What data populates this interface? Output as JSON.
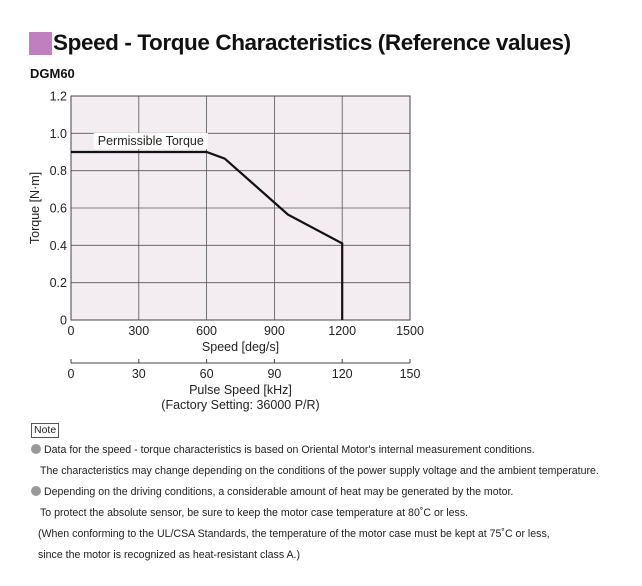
{
  "header": {
    "title": "Speed - Torque Characteristics (Reference values)",
    "model": "DGM60"
  },
  "chart_data": {
    "type": "line",
    "title": "",
    "xlabel": "Speed [deg/s]",
    "ylabel": "Torque [N·m]",
    "xlim": [
      0,
      1500
    ],
    "ylim": [
      0,
      1.2
    ],
    "x_ticks": [
      "0",
      "300",
      "600",
      "900",
      "1200",
      "1500"
    ],
    "y_ticks": [
      "0",
      "0.2",
      "0.4",
      "0.6",
      "0.8",
      "1.0",
      "1.2"
    ],
    "grid": true,
    "background": "#f3edf2",
    "series": [
      {
        "name": "Permissible Torque",
        "color": "#111111",
        "x": [
          0,
          600,
          680,
          960,
          1200,
          1200
        ],
        "y": [
          0.9,
          0.9,
          0.865,
          0.565,
          0.41,
          0
        ]
      }
    ],
    "secondary_axis": {
      "label": "Pulse Speed [kHz]",
      "sublabel": "(Factory Setting: 36000 P/R)",
      "ticks": [
        "0",
        "30",
        "60",
        "90",
        "120",
        "150"
      ],
      "range": [
        0,
        150
      ]
    }
  },
  "notes": {
    "label": "Note",
    "lines": [
      {
        "bullet": true,
        "text": "Data for the speed - torque characteristics is based on Oriental Motor's internal measurement conditions."
      },
      {
        "bullet": false,
        "text": "The characteristics may change depending on the conditions of the power supply voltage and the ambient temperature."
      },
      {
        "bullet": true,
        "text": "Depending on the driving conditions, a considerable amount of heat may be generated by the motor."
      },
      {
        "bullet": false,
        "text": "To protect the absolute sensor, be sure to keep the motor case temperature at 80˚C or less."
      },
      {
        "bullet": false,
        "text": "(When conforming to the UL/CSA Standards, the temperature of the motor case must be kept at 75˚C or less,"
      },
      {
        "bullet": false,
        "text": "since the motor is recognized as heat-resistant class A.)"
      }
    ]
  }
}
